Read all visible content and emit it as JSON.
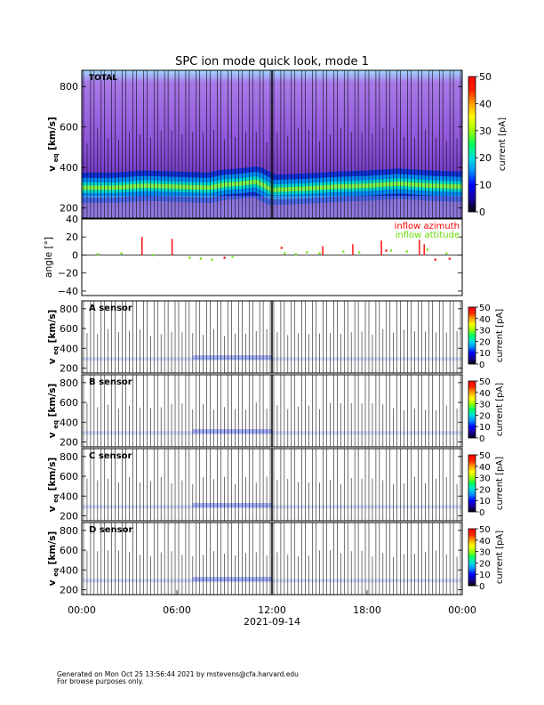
{
  "title": "SPC ion mode quick look, mode 1",
  "x_axis": {
    "ticks": [
      "00:00",
      "06:00",
      "12:00",
      "18:00",
      "00:00"
    ],
    "date_label": "2021-09-14"
  },
  "footer": {
    "line1": "Generated on Mon Oct 25 13:56:44 2021 by mstevens@cfa.harvard.edu",
    "line2": "For browse purposes only."
  },
  "colorbar": {
    "label": "current [pA]",
    "ticks": [
      "0",
      "10",
      "20",
      "30",
      "40",
      "50"
    ],
    "colors": [
      "#000000",
      "#1a00a0",
      "#0000ff",
      "#0090ff",
      "#00e0e0",
      "#00ff60",
      "#a0ff00",
      "#ffff00",
      "#ffa000",
      "#ff2000",
      "#ff0000"
    ]
  },
  "chart_data": [
    {
      "panel": "TOTAL",
      "type": "heatmap",
      "label": "TOTAL",
      "ylabel": "v_eq [km/s]",
      "ylabel_main": "v",
      "ylabel_sub": "eq",
      "ylabel_unit": "[km/s]",
      "ylim": [
        150,
        880
      ],
      "yticks": [
        "200",
        "400",
        "600",
        "800"
      ],
      "xlim_hours": [
        0,
        24
      ],
      "colorbar_range_pA": [
        0,
        50
      ],
      "peak_velocity_track": {
        "x_hours": [
          0,
          2,
          4,
          6,
          8,
          9,
          10,
          11,
          12,
          14,
          16,
          18,
          20,
          22,
          24
        ],
        "v_kms": [
          300,
          300,
          310,
          305,
          300,
          315,
          320,
          330,
          290,
          295,
          305,
          310,
          320,
          310,
          305
        ]
      }
    },
    {
      "panel": "angle",
      "type": "scatter",
      "ylabel": "angle [°]",
      "ylabel_main": "angle [",
      "ylabel_deg": "°",
      "ylabel_close": "]",
      "ylim": [
        -45,
        40
      ],
      "yticks": [
        "40",
        "20",
        "0",
        "−20",
        "−40"
      ],
      "xlim_hours": [
        0,
        24
      ],
      "series": [
        {
          "name": "inflow azimuth",
          "color": "#ff0000",
          "x": [
            3.8,
            5.7,
            9.0,
            12.6,
            15.2,
            17.1,
            18.9,
            19.2,
            21.3,
            21.6,
            22.3,
            23.2
          ],
          "y": [
            20,
            18,
            -3,
            8,
            10,
            12,
            16,
            5,
            17,
            12,
            -5,
            -4
          ]
        },
        {
          "name": "inflow attitude",
          "color": "#66dd00",
          "x": [
            1.0,
            2.5,
            4.5,
            6.8,
            7.5,
            8.2,
            9.5,
            12.8,
            13.5,
            14.2,
            15.0,
            16.5,
            17.5,
            19.5,
            20.5,
            21.8,
            23.0
          ],
          "y": [
            1,
            2,
            0,
            -3,
            -4,
            -5,
            -2,
            2,
            1,
            3,
            2,
            4,
            3,
            5,
            4,
            6,
            2
          ]
        }
      ]
    },
    {
      "panel": "A",
      "type": "heatmap",
      "label": "A sensor",
      "ylabel": "v_eq [km/s]",
      "ylim": [
        150,
        880
      ],
      "yticks": [
        "200",
        "400",
        "600",
        "800"
      ],
      "colorbar_range_pA": [
        0,
        50
      ]
    },
    {
      "panel": "B",
      "type": "heatmap",
      "label": "B sensor",
      "ylabel": "v_eq [km/s]",
      "ylim": [
        150,
        880
      ],
      "yticks": [
        "200",
        "400",
        "600",
        "800"
      ],
      "colorbar_range_pA": [
        0,
        50
      ]
    },
    {
      "panel": "C",
      "type": "heatmap",
      "label": "C sensor",
      "ylabel": "v_eq [km/s]",
      "ylim": [
        150,
        880
      ],
      "yticks": [
        "200",
        "400",
        "600",
        "800"
      ],
      "colorbar_range_pA": [
        0,
        50
      ]
    },
    {
      "panel": "D",
      "type": "heatmap",
      "label": "D sensor",
      "ylabel": "v_eq [km/s]",
      "ylim": [
        150,
        880
      ],
      "yticks": [
        "200",
        "400",
        "600",
        "800"
      ],
      "colorbar_range_pA": [
        0,
        50
      ]
    }
  ]
}
